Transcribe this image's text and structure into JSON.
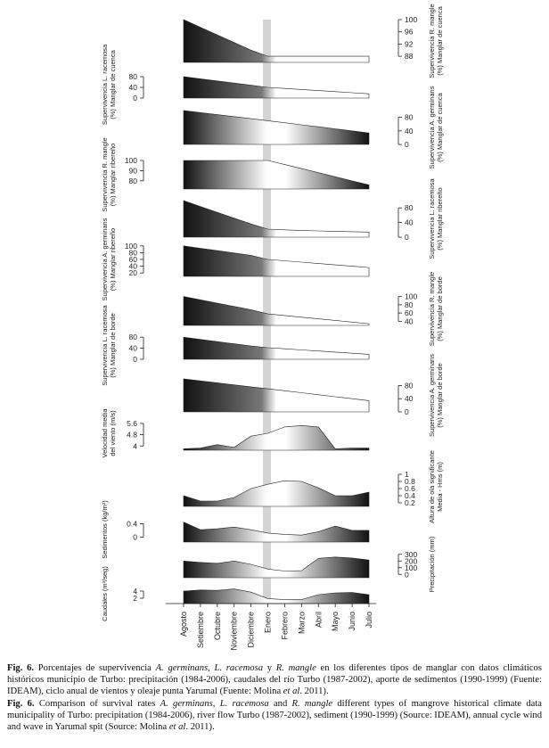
{
  "chart_data": {
    "type": "area",
    "months": [
      "Agosto",
      "Setiembre",
      "Octubre",
      "Noviembre",
      "Diciembre",
      "Enero",
      "Febrero",
      "Marzo",
      "Abril",
      "Mayo",
      "Junio",
      "Julio"
    ],
    "panels": [
      {
        "id": "surv-r-mangle-cuenca",
        "side": "right",
        "ylabel": [
          "Supervivencia R. mangle",
          "(%) Manglar de cuenca"
        ],
        "ticks": [
          100,
          96,
          92,
          88
        ],
        "ylim": [
          86,
          100
        ],
        "series": [
          {
            "values": [
              100,
              97.5,
              95,
              92.5,
              90,
              88,
              88,
              88,
              88,
              88,
              88,
              88
            ],
            "gradient": "dark-left"
          }
        ]
      },
      {
        "id": "surv-l-racemosa-cuenca",
        "side": "left",
        "ylabel": [
          "Supervivencia L. racemosa",
          "(%) Manglar de cuenca"
        ],
        "ticks": [
          80,
          40,
          0
        ],
        "ylim": [
          0,
          100
        ],
        "series": [
          {
            "values": [
              80,
              72,
              64,
              56,
              48,
              40,
              36,
              32,
              28,
              24,
              20,
              16
            ],
            "gradient": "dark-left"
          }
        ]
      },
      {
        "id": "surv-a-germinans-cuenca",
        "side": "right",
        "ylabel": [
          "Supervivencia A. germinans",
          "(%) Manglar de cuenca"
        ],
        "ticks": [
          80,
          40,
          0
        ],
        "ylim": [
          0,
          100
        ],
        "series": [
          {
            "values": [
              100,
              94,
              88,
              82,
              76,
              70,
              64,
              58,
              52,
              46,
              40,
              34
            ],
            "gradient": "dark-both"
          }
        ]
      },
      {
        "id": "surv-r-mangle-ribereno",
        "side": "left",
        "ylabel": [
          "Supervivencia R. mangle",
          "(%) Manglar ribereño"
        ],
        "ticks": [
          100,
          90,
          80
        ],
        "ylim": [
          72,
          100
        ],
        "series": [
          {
            "values": [
              100,
              100,
              100,
              100,
              100,
              100,
              96,
              92,
              88,
              84,
              80,
              76
            ],
            "gradient": "dark-both"
          }
        ]
      },
      {
        "id": "surv-l-racemosa-ribereno",
        "side": "right",
        "ylabel": [
          "Supervivencia L. racemosa",
          "(%) Manglar ribereño"
        ],
        "ticks": [
          80,
          40,
          0
        ],
        "ylim": [
          0,
          100
        ],
        "series": [
          {
            "values": [
              100,
              84,
              68,
              52,
              36,
              22,
              20,
              18,
              17,
              16,
              15,
              14
            ],
            "gradient": "dark-left"
          }
        ]
      },
      {
        "id": "surv-a-germinans-ribereno",
        "side": "left",
        "ylabel": [
          "Supervivencia A. germinans",
          "(%) Manglar ribereño"
        ],
        "ticks": [
          100,
          80,
          60,
          40,
          20
        ],
        "ylim": [
          10,
          110
        ],
        "series": [
          {
            "values": [
              100,
              93,
              86,
              79,
              72,
              60,
              56,
              52,
              48,
              44,
              40,
              36
            ],
            "gradient": "dark-left"
          }
        ]
      },
      {
        "id": "surv-r-mangle-borde",
        "side": "right",
        "ylabel": [
          "Supervivencia R. mangle",
          "(%) Manglar de borde"
        ],
        "ticks": [
          100,
          80,
          60,
          40
        ],
        "ylim": [
          30,
          110
        ],
        "series": [
          {
            "values": [
              100,
              92,
              84,
              76,
              68,
              58,
              54,
              50,
              46,
              42,
              38,
              34
            ],
            "gradient": "dark-left"
          }
        ]
      },
      {
        "id": "surv-l-racemosa-borde",
        "side": "left",
        "ylabel": [
          "Supervivencia L. racemosa",
          "(%) Manglar de borde"
        ],
        "ticks": [
          80,
          40,
          0
        ],
        "ylim": [
          0,
          100
        ],
        "series": [
          {
            "values": [
              80,
              72,
              64,
              56,
              48,
              42,
              38,
              34,
              30,
              26,
              22,
              18
            ],
            "gradient": "dark-left"
          }
        ]
      },
      {
        "id": "surv-a-germinans-borde",
        "side": "right",
        "ylabel": [
          "Supervivencia A. germinans",
          "(%) Manglar de borde"
        ],
        "ticks": [
          80,
          40,
          0
        ],
        "ylim": [
          0,
          100
        ],
        "series": [
          {
            "values": [
              100,
              94,
              88,
              82,
              76,
              70,
              64,
              58,
              52,
              46,
              40,
              34
            ],
            "gradient": "dark-left"
          }
        ]
      },
      {
        "id": "wind",
        "side": "left",
        "ylabel": [
          "Velocidad media",
          "del viento (m/s)"
        ],
        "ticks": [
          5.6,
          4.8,
          4
        ],
        "ylim": [
          3.7,
          6.1
        ],
        "series": [
          {
            "values": [
              3.8,
              3.85,
              4.1,
              3.9,
              4.7,
              4.9,
              5.35,
              5.45,
              5.35,
              3.8,
              3.85,
              3.85
            ],
            "gradient": "dark-both"
          }
        ]
      },
      {
        "id": "wave",
        "side": "right",
        "ylabel": [
          "Altura de ola significante",
          "Media - Hms (m)"
        ],
        "ticks": [
          1,
          0.8,
          0.6,
          0.4,
          0.2
        ],
        "ylim": [
          0.1,
          1.2
        ],
        "series": [
          {
            "values": [
              0.4,
              0.25,
              0.25,
              0.35,
              0.6,
              0.72,
              0.82,
              0.8,
              0.62,
              0.4,
              0.4,
              0.5
            ],
            "gradient": "dark-both"
          }
        ]
      },
      {
        "id": "sediments",
        "side": "left",
        "ylabel": [
          "Sedimentos (kg/m²)"
        ],
        "ticks": [
          0.4,
          0
        ],
        "ylim": [
          -0.15,
          0.6
        ],
        "series": [
          {
            "values": [
              0.45,
              0.22,
              0.25,
              0.3,
              0.22,
              0.12,
              0.08,
              0.06,
              0.16,
              0.33,
              0.2,
              0.2
            ],
            "gradient": "dark-both"
          }
        ]
      },
      {
        "id": "precipitation",
        "side": "right",
        "ylabel": [
          "Precipitación (mm)"
        ],
        "ticks": [
          300,
          200,
          100,
          0
        ],
        "ylim": [
          -50,
          350
        ],
        "series": [
          {
            "values": [
              200,
              180,
              165,
              200,
              150,
              80,
              50,
              55,
              240,
              260,
              245,
              215
            ],
            "gradient": "dark-both"
          }
        ]
      },
      {
        "id": "flow",
        "side": "left",
        "ylabel": [
          "Caudales (m³/seg)"
        ],
        "ticks": [
          4,
          2
        ],
        "ylim": [
          0.5,
          6
        ],
        "series": [
          {
            "values": [
              4,
              4.3,
              4.2,
              4.6,
              3.7,
              1.9,
              1.6,
              1.6,
              3.0,
              3.5,
              3.6,
              3.0
            ],
            "gradient": "dark-both"
          }
        ]
      }
    ],
    "grid": false,
    "highlight_band": "Diciembre-Enero"
  },
  "caption": {
    "es_prefix": "Fig. 6.",
    "es_text_1": " Porcentajes de supervivencia ",
    "es_sp1": "A. germinans",
    "es_sep1": ", ",
    "es_sp2": "L. racemosa",
    "es_sep2": " y ",
    "es_sp3": "R. mangle",
    "es_text_2": " en los diferentes tipos de manglar con datos climáticos históricos municipio de Turbo: precipitación (1984-2006), caudales del río Turbo (1987-2002), aporte de sedimentos (1990-1999) (Fuente: IDEAM), ciclo anual de vientos y oleaje punta Yarumal (Fuente: Molina ",
    "es_etal": "et al",
    "es_text_3": ". 2011).",
    "en_prefix": "Fig. 6.",
    "en_text_1": " Comparison of survival rates ",
    "en_sp1": "A. germinans",
    "en_sep1": ", ",
    "en_sp2": "L. racemosa",
    "en_sep2": " and ",
    "en_sp3": "R. mangle",
    "en_text_2": " different types of mangrove historical climate data municipality of Turbo: precipitation (1984-2006), river flow Turbo (1987-2002), sediment (1990-1999) (Source: IDEAM), annual cycle wind and wave in Yarumal spit (Source: Molina ",
    "en_etal": "et al",
    "en_text_3": ". 2011)."
  }
}
